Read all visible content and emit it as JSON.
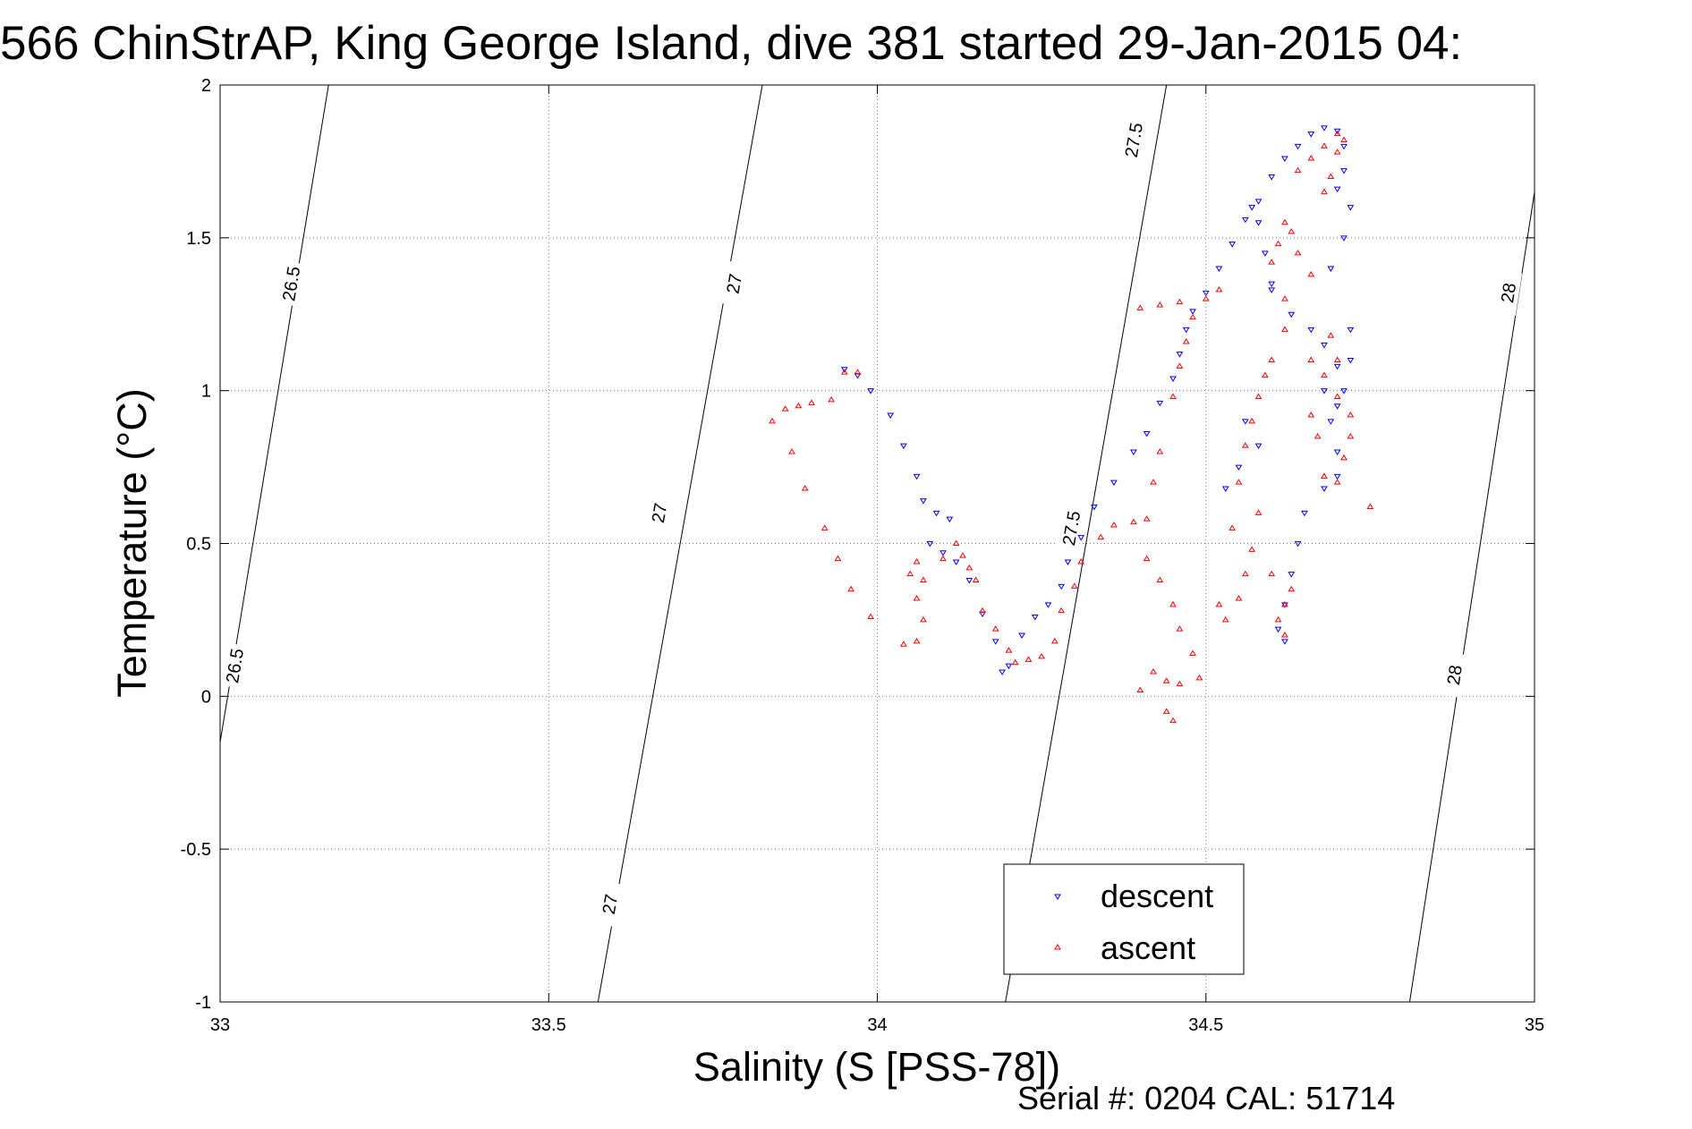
{
  "figure": {
    "title": "566 ChinStrAP, King George Island, dive 381 started 29-Jan-2015 04:",
    "serial_text": "Serial #: 0204  CAL: 51714"
  },
  "chart_data": {
    "type": "scatter",
    "title": "566 ChinStrAP, King George Island, dive 381 started 29-Jan-2015 04:",
    "xlabel": "Salinity (S [PSS-78])",
    "ylabel": "Temperature (°C)",
    "xlim": [
      33,
      35
    ],
    "ylim": [
      -1,
      2
    ],
    "x_ticks": [
      "33",
      "33.5",
      "34",
      "34.5",
      "35"
    ],
    "y_ticks": [
      "-1",
      "-0.5",
      "0",
      "0.5",
      "1",
      "1.5",
      "2"
    ],
    "grid": true,
    "legend_position": "bottom-center",
    "density_contours": [
      {
        "label": "26.5",
        "points": [
          [
            33.0,
            -0.15
          ],
          [
            33.165,
            2.0
          ]
        ],
        "labels_at": [
          [
            33.022,
            0.1
          ],
          [
            33.108,
            1.35
          ]
        ]
      },
      {
        "label": "27",
        "points": [
          [
            33.575,
            -1.0
          ],
          [
            33.825,
            2.0
          ]
        ],
        "labels_at": [
          [
            33.593,
            -0.68
          ],
          [
            33.668,
            0.6
          ],
          [
            33.782,
            1.35
          ]
        ]
      },
      {
        "label": "27.5",
        "points": [
          [
            34.195,
            -1.0
          ],
          [
            34.44,
            2.0
          ]
        ],
        "labels_at": [
          [
            34.295,
            0.55
          ],
          [
            34.39,
            1.82
          ]
        ]
      },
      {
        "label": "28",
        "points": [
          [
            34.81,
            -1.0
          ],
          [
            35.0,
            1.65
          ]
        ],
        "labels_at": [
          [
            34.878,
            0.07
          ],
          [
            34.96,
            1.32
          ]
        ]
      }
    ],
    "series": [
      {
        "name": "descent",
        "color": "#0000ff",
        "marker": "triangle-down",
        "points": [
          [
            33.95,
            1.07
          ],
          [
            33.97,
            1.05
          ],
          [
            33.99,
            1.0
          ],
          [
            34.02,
            0.92
          ],
          [
            34.04,
            0.82
          ],
          [
            34.06,
            0.72
          ],
          [
            34.07,
            0.64
          ],
          [
            34.09,
            0.6
          ],
          [
            34.11,
            0.58
          ],
          [
            34.08,
            0.5
          ],
          [
            34.1,
            0.47
          ],
          [
            34.12,
            0.44
          ],
          [
            34.14,
            0.38
          ],
          [
            34.16,
            0.27
          ],
          [
            34.18,
            0.18
          ],
          [
            34.19,
            0.08
          ],
          [
            34.2,
            0.1
          ],
          [
            34.22,
            0.2
          ],
          [
            34.24,
            0.26
          ],
          [
            34.26,
            0.3
          ],
          [
            34.28,
            0.36
          ],
          [
            34.29,
            0.44
          ],
          [
            34.31,
            0.52
          ],
          [
            34.33,
            0.62
          ],
          [
            34.36,
            0.7
          ],
          [
            34.39,
            0.8
          ],
          [
            34.41,
            0.86
          ],
          [
            34.43,
            0.96
          ],
          [
            34.45,
            1.04
          ],
          [
            34.46,
            1.12
          ],
          [
            34.47,
            1.2
          ],
          [
            34.48,
            1.26
          ],
          [
            34.5,
            1.32
          ],
          [
            34.52,
            1.4
          ],
          [
            34.54,
            1.48
          ],
          [
            34.56,
            1.56
          ],
          [
            34.58,
            1.62
          ],
          [
            34.6,
            1.7
          ],
          [
            34.62,
            1.76
          ],
          [
            34.64,
            1.8
          ],
          [
            34.66,
            1.84
          ],
          [
            34.68,
            1.86
          ],
          [
            34.7,
            1.85
          ],
          [
            34.71,
            1.8
          ],
          [
            34.71,
            1.72
          ],
          [
            34.7,
            1.66
          ],
          [
            34.72,
            1.6
          ],
          [
            34.71,
            1.5
          ],
          [
            34.69,
            1.4
          ],
          [
            34.66,
            1.2
          ],
          [
            34.68,
            1.15
          ],
          [
            34.7,
            1.08
          ],
          [
            34.72,
            1.2
          ],
          [
            34.72,
            1.1
          ],
          [
            34.71,
            1.0
          ],
          [
            34.7,
            0.95
          ],
          [
            34.68,
            1.0
          ],
          [
            34.69,
            0.9
          ],
          [
            34.7,
            0.8
          ],
          [
            34.7,
            0.72
          ],
          [
            34.68,
            0.68
          ],
          [
            34.65,
            0.6
          ],
          [
            34.64,
            0.5
          ],
          [
            34.63,
            0.4
          ],
          [
            34.62,
            0.3
          ],
          [
            34.61,
            0.22
          ],
          [
            34.62,
            0.18
          ],
          [
            34.6,
            1.35
          ],
          [
            34.59,
            1.45
          ],
          [
            34.58,
            1.55
          ],
          [
            34.57,
            1.6
          ],
          [
            34.6,
            1.33
          ],
          [
            34.63,
            1.25
          ],
          [
            34.56,
            0.9
          ],
          [
            34.58,
            0.82
          ],
          [
            34.55,
            0.75
          ],
          [
            34.53,
            0.68
          ]
        ]
      },
      {
        "name": "ascent",
        "color": "#ff0000",
        "marker": "triangle-up",
        "points": [
          [
            33.84,
            0.9
          ],
          [
            33.86,
            0.94
          ],
          [
            33.88,
            0.95
          ],
          [
            33.9,
            0.96
          ],
          [
            33.93,
            0.97
          ],
          [
            33.95,
            1.06
          ],
          [
            33.97,
            1.06
          ],
          [
            33.87,
            0.8
          ],
          [
            33.89,
            0.68
          ],
          [
            33.92,
            0.55
          ],
          [
            33.94,
            0.45
          ],
          [
            33.96,
            0.35
          ],
          [
            33.99,
            0.26
          ],
          [
            34.04,
            0.17
          ],
          [
            34.06,
            0.18
          ],
          [
            34.07,
            0.25
          ],
          [
            34.06,
            0.32
          ],
          [
            34.05,
            0.4
          ],
          [
            34.06,
            0.44
          ],
          [
            34.07,
            0.38
          ],
          [
            34.1,
            0.45
          ],
          [
            34.12,
            0.5
          ],
          [
            34.13,
            0.46
          ],
          [
            34.14,
            0.42
          ],
          [
            34.15,
            0.38
          ],
          [
            34.16,
            0.28
          ],
          [
            34.18,
            0.22
          ],
          [
            34.2,
            0.15
          ],
          [
            34.21,
            0.11
          ],
          [
            34.23,
            0.12
          ],
          [
            34.25,
            0.13
          ],
          [
            34.27,
            0.18
          ],
          [
            34.28,
            0.28
          ],
          [
            34.3,
            0.36
          ],
          [
            34.31,
            0.44
          ],
          [
            34.34,
            0.52
          ],
          [
            34.36,
            0.56
          ],
          [
            34.39,
            0.57
          ],
          [
            34.41,
            0.58
          ],
          [
            34.42,
            0.7
          ],
          [
            34.43,
            0.8
          ],
          [
            34.45,
            0.98
          ],
          [
            34.46,
            1.08
          ],
          [
            34.47,
            1.16
          ],
          [
            34.48,
            1.24
          ],
          [
            34.5,
            1.3
          ],
          [
            34.52,
            1.33
          ],
          [
            34.4,
            1.27
          ],
          [
            34.43,
            1.28
          ],
          [
            34.46,
            1.29
          ],
          [
            34.41,
            0.45
          ],
          [
            34.43,
            0.38
          ],
          [
            34.45,
            0.3
          ],
          [
            34.46,
            0.22
          ],
          [
            34.48,
            0.14
          ],
          [
            34.42,
            0.08
          ],
          [
            34.44,
            0.05
          ],
          [
            34.46,
            0.04
          ],
          [
            34.49,
            0.06
          ],
          [
            34.44,
            -0.05
          ],
          [
            34.45,
            -0.08
          ],
          [
            34.4,
            0.02
          ],
          [
            34.62,
            0.2
          ],
          [
            34.62,
            0.3
          ],
          [
            34.63,
            0.35
          ],
          [
            34.61,
            0.25
          ],
          [
            34.6,
            0.4
          ],
          [
            34.62,
            1.3
          ],
          [
            34.6,
            1.42
          ],
          [
            34.61,
            1.48
          ],
          [
            34.62,
            1.55
          ],
          [
            34.63,
            1.52
          ],
          [
            34.64,
            1.45
          ],
          [
            34.66,
            1.38
          ],
          [
            34.68,
            1.65
          ],
          [
            34.69,
            1.7
          ],
          [
            34.7,
            1.78
          ],
          [
            34.71,
            1.82
          ],
          [
            34.7,
            1.84
          ],
          [
            34.68,
            1.8
          ],
          [
            34.66,
            1.76
          ],
          [
            34.64,
            1.72
          ],
          [
            34.66,
            1.1
          ],
          [
            34.68,
            1.05
          ],
          [
            34.7,
            0.98
          ],
          [
            34.72,
            0.92
          ],
          [
            34.72,
            0.85
          ],
          [
            34.71,
            0.78
          ],
          [
            34.7,
            0.7
          ],
          [
            34.68,
            0.72
          ],
          [
            34.67,
            0.85
          ],
          [
            34.66,
            0.92
          ],
          [
            34.69,
            1.18
          ],
          [
            34.7,
            1.1
          ],
          [
            34.75,
            0.62
          ],
          [
            34.58,
            0.6
          ],
          [
            34.57,
            0.48
          ],
          [
            34.56,
            0.4
          ],
          [
            34.55,
            0.32
          ],
          [
            34.53,
            0.25
          ],
          [
            34.52,
            0.3
          ],
          [
            34.54,
            0.55
          ],
          [
            34.55,
            0.7
          ],
          [
            34.56,
            0.82
          ],
          [
            34.57,
            0.9
          ],
          [
            34.58,
            0.98
          ],
          [
            34.59,
            1.05
          ],
          [
            34.6,
            1.1
          ],
          [
            34.62,
            1.2
          ]
        ]
      }
    ]
  }
}
